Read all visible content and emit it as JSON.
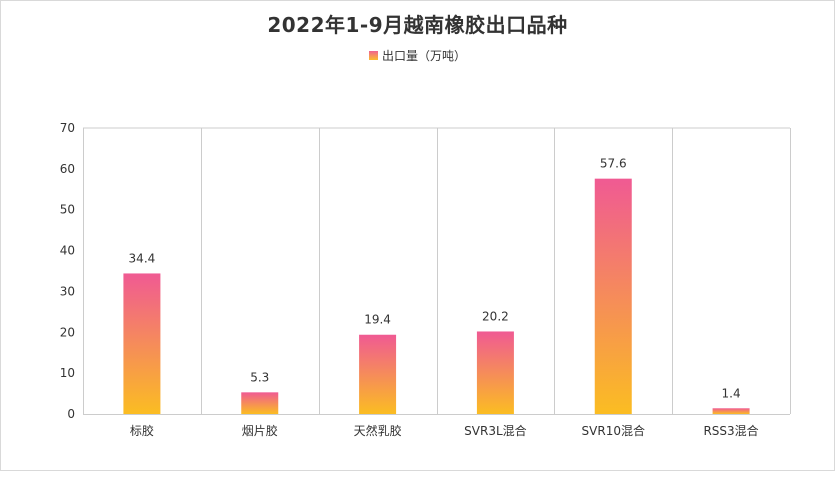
{
  "chart_data": {
    "type": "bar",
    "title": "2022年1-9月越南橡胶出口品种",
    "categories": [
      "标胶",
      "烟片胶",
      "天然乳胶",
      "SVR3L混合",
      "SVR10混合",
      "RSS3混合"
    ],
    "series": [
      {
        "name": "出口量（万吨）",
        "values": [
          34.4,
          5.3,
          19.4,
          20.2,
          57.6,
          1.4
        ],
        "labels": [
          "34.4",
          "5.3",
          "19.4",
          "20.2",
          "57.6",
          "1.4"
        ]
      }
    ],
    "ylim": [
      0,
      70
    ],
    "yticks": [
      0,
      10,
      20,
      30,
      40,
      50,
      60,
      70
    ],
    "xlabel": "",
    "ylabel": "",
    "legend": "top-center",
    "grid": "vertical-category-dividers",
    "colors": {
      "bar_top": "#f05a93",
      "bar_bottom": "#fbbd22",
      "axis": "#cccccc",
      "text": "#333333"
    }
  }
}
